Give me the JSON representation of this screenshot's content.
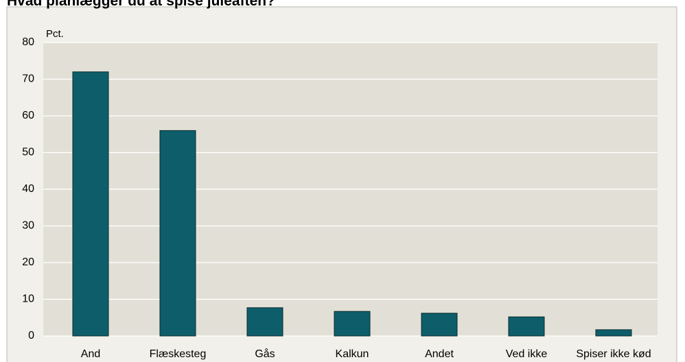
{
  "chart_data": {
    "type": "bar",
    "title": "Hvad planlægger du at spise juleaften?",
    "unit_label": "Pct.",
    "categories": [
      "And",
      "Flæskesteg",
      "Gås",
      "Kalkun",
      "Andet",
      "Ved ikke",
      "Spiser ikke kød"
    ],
    "values": [
      72,
      56,
      7.7,
      6.7,
      6.2,
      5.2,
      1.7
    ],
    "color": "#0d5e6a",
    "ylim": [
      0,
      80
    ],
    "yticks": [
      0,
      10,
      20,
      30,
      40,
      50,
      60,
      70,
      80
    ],
    "grid": true
  }
}
